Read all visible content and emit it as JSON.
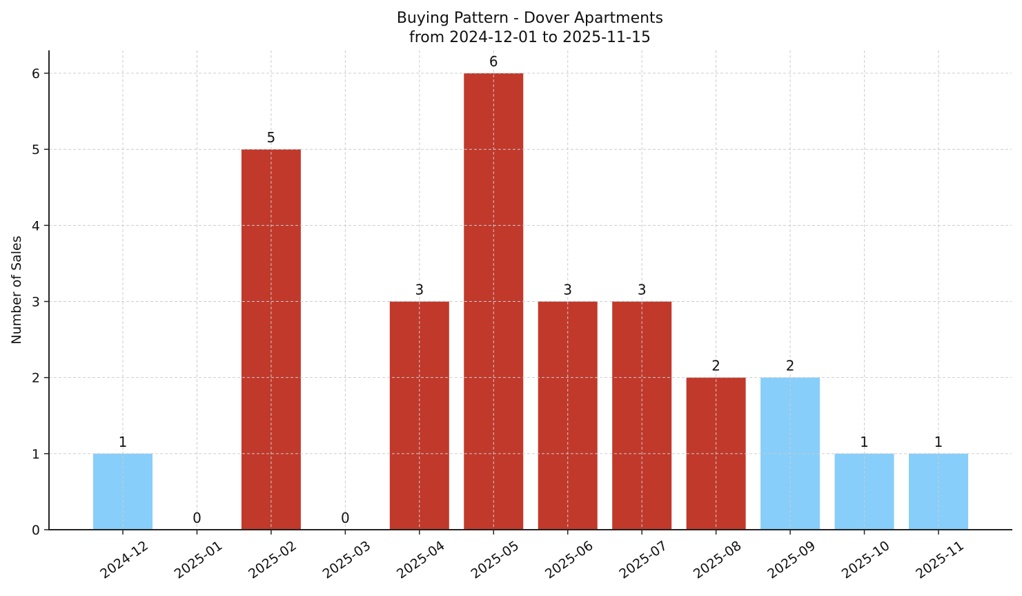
{
  "chart_data": {
    "type": "bar",
    "title": "Buying Pattern - Dover Apartments",
    "subtitle": "from 2024-12-01 to 2025-11-15",
    "xlabel": "",
    "ylabel": "Number of Sales",
    "categories": [
      "2024-12",
      "2025-01",
      "2025-02",
      "2025-03",
      "2025-04",
      "2025-05",
      "2025-06",
      "2025-07",
      "2025-08",
      "2025-09",
      "2025-10",
      "2025-11"
    ],
    "values": [
      1,
      0,
      5,
      0,
      3,
      6,
      3,
      3,
      2,
      2,
      1,
      1
    ],
    "bar_colors": [
      "#87CEFA",
      "#87CEFA",
      "#C0392B",
      "#87CEFA",
      "#C0392B",
      "#C0392B",
      "#C0392B",
      "#C0392B",
      "#C0392B",
      "#87CEFA",
      "#87CEFA",
      "#87CEFA"
    ],
    "ylim": [
      0,
      6.3
    ],
    "yticks": [
      0,
      1,
      2,
      3,
      4,
      5,
      6
    ],
    "grid": true,
    "legend": null,
    "data_labels": true
  },
  "colors": {
    "highlight": "#C0392B",
    "normal": "#87CEFA",
    "grid": "#cccccc",
    "axis": "#222222"
  }
}
